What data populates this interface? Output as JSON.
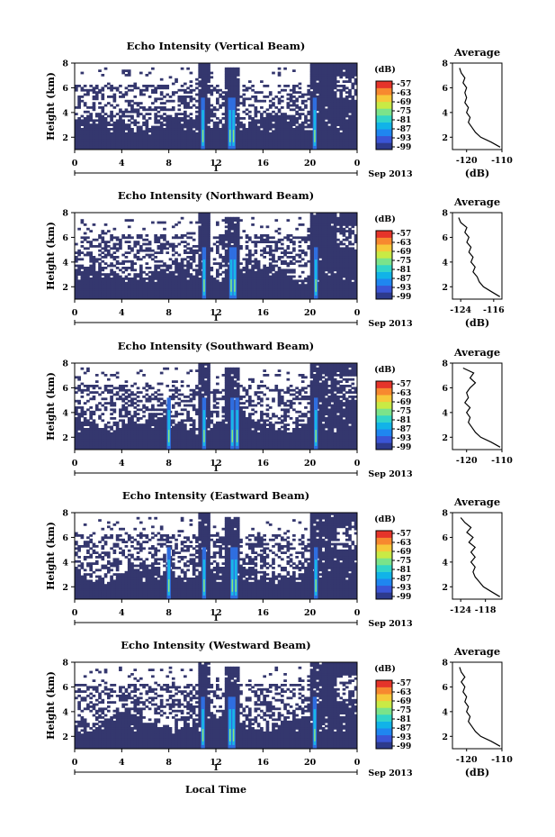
{
  "figure": {
    "xlabel": "Local Time",
    "date_label": "Sep 2013",
    "day_label": "1",
    "colorbar_unit": "(dB)",
    "colorbar_ticks": [
      "-57",
      "-63",
      "-69",
      "-75",
      "-81",
      "-87",
      "-93",
      "-99"
    ],
    "colorbar_colors": [
      "#2d3a8c",
      "#3a55d6",
      "#1f86f0",
      "#11b3e8",
      "#33d5c8",
      "#7be38a",
      "#c9ea45",
      "#f6c93a",
      "#f7892f",
      "#e5342a"
    ],
    "background_color": "#34376e"
  },
  "chart_data": [
    {
      "type": "heatmap",
      "title": "Echo Intensity (Vertical Beam)",
      "ylabel": "Height (km)",
      "x_ticks": [
        "0",
        "4",
        "8",
        "12",
        "16",
        "20",
        "0"
      ],
      "xlim": [
        0,
        24
      ],
      "y_ticks": [
        "2",
        "4",
        "6",
        "8"
      ],
      "ylim": [
        1,
        8
      ],
      "spikes_hours": [
        10.9,
        13.2,
        13.5,
        20.4
      ],
      "avg_profile": {
        "title": "Average",
        "xlabel": "(dB)",
        "x_ticks": [
          "-120",
          "-110"
        ],
        "xlim": [
          -124,
          -110
        ],
        "y_ticks": [
          "2",
          "4",
          "6",
          "8"
        ],
        "ylim": [
          1,
          8
        ],
        "height_km": [
          1.2,
          1.6,
          2.0,
          2.4,
          2.8,
          3.2,
          3.6,
          4.0,
          4.4,
          4.8,
          5.2,
          5.6,
          6.0,
          6.4,
          6.8,
          7.2,
          7.6
        ],
        "db": [
          -110.5,
          -113,
          -116,
          -117.5,
          -118.5,
          -119.5,
          -119,
          -120,
          -119.5,
          -120.5,
          -120,
          -120.5,
          -120,
          -121,
          -120.5,
          -121.5,
          -122
        ]
      }
    },
    {
      "type": "heatmap",
      "title": "Echo Intensity (Northward Beam)",
      "ylabel": "Height (km)",
      "x_ticks": [
        "0",
        "4",
        "8",
        "12",
        "16",
        "20",
        "0"
      ],
      "xlim": [
        0,
        24
      ],
      "y_ticks": [
        "2",
        "4",
        "6",
        "8"
      ],
      "ylim": [
        1,
        8
      ],
      "spikes_hours": [
        11.0,
        13.3,
        13.6,
        20.5
      ],
      "avg_profile": {
        "title": "Average",
        "xlabel": "(dB)",
        "x_ticks": [
          "-124",
          "-116"
        ],
        "xlim": [
          -126,
          -114
        ],
        "y_ticks": [
          "2",
          "4",
          "6",
          "8"
        ],
        "ylim": [
          1,
          8
        ],
        "height_km": [
          1.2,
          1.6,
          2.0,
          2.4,
          2.8,
          3.2,
          3.6,
          4.0,
          4.4,
          4.8,
          5.2,
          5.6,
          6.0,
          6.4,
          6.8,
          7.2,
          7.6
        ],
        "db": [
          -114.5,
          -116.5,
          -118.5,
          -119.5,
          -120,
          -121,
          -120.5,
          -121.5,
          -121,
          -122,
          -121.5,
          -122.5,
          -122,
          -123,
          -122.5,
          -124,
          -124.5
        ]
      }
    },
    {
      "type": "heatmap",
      "title": "Echo Intensity (Southward Beam)",
      "ylabel": "Height (km)",
      "x_ticks": [
        "0",
        "4",
        "8",
        "12",
        "16",
        "20",
        "0"
      ],
      "xlim": [
        0,
        24
      ],
      "y_ticks": [
        "2",
        "4",
        "6",
        "8"
      ],
      "ylim": [
        1,
        8
      ],
      "spikes_hours": [
        8.0,
        11.0,
        13.4,
        13.8,
        20.5
      ],
      "avg_profile": {
        "title": "Average",
        "xlabel": "",
        "x_ticks": [
          "-120",
          "-110"
        ],
        "xlim": [
          -124,
          -110
        ],
        "y_ticks": [
          "2",
          "4",
          "6",
          "8"
        ],
        "ylim": [
          1,
          8
        ],
        "height_km": [
          1.2,
          1.6,
          2.0,
          2.4,
          2.8,
          3.2,
          3.6,
          4.0,
          4.4,
          4.8,
          5.2,
          5.6,
          6.0,
          6.4,
          6.8,
          7.2,
          7.6
        ],
        "db": [
          -110.5,
          -113,
          -116,
          -117.5,
          -118.5,
          -119.5,
          -119,
          -120,
          -119,
          -120.5,
          -119.5,
          -120,
          -119,
          -117.5,
          -119,
          -118,
          -121
        ]
      }
    },
    {
      "type": "heatmap",
      "title": "Echo Intensity (Eastward Beam)",
      "ylabel": "Height (km)",
      "x_ticks": [
        "0",
        "4",
        "8",
        "12",
        "16",
        "20",
        "0"
      ],
      "xlim": [
        0,
        24
      ],
      "y_ticks": [
        "2",
        "4",
        "6",
        "8"
      ],
      "ylim": [
        1,
        8
      ],
      "spikes_hours": [
        8.0,
        11.0,
        13.4,
        13.7,
        20.5
      ],
      "avg_profile": {
        "title": "Average",
        "xlabel": "",
        "x_ticks": [
          "-124",
          "-118"
        ],
        "xlim": [
          -126,
          -114
        ],
        "y_ticks": [
          "2",
          "4",
          "6",
          "8"
        ],
        "ylim": [
          1,
          8
        ],
        "height_km": [
          1.2,
          1.6,
          2.0,
          2.4,
          2.8,
          3.2,
          3.6,
          4.0,
          4.4,
          4.8,
          5.2,
          5.6,
          6.0,
          6.4,
          6.8,
          7.2,
          7.6
        ],
        "db": [
          -114.5,
          -116.5,
          -118.5,
          -119.5,
          -120.5,
          -121,
          -120.5,
          -121.5,
          -120.5,
          -121.5,
          -120.5,
          -122,
          -121,
          -122.5,
          -121.5,
          -123,
          -124
        ]
      }
    },
    {
      "type": "heatmap",
      "title": "Echo Intensity (Westward Beam)",
      "ylabel": "Height (km)",
      "x_ticks": [
        "0",
        "4",
        "8",
        "12",
        "16",
        "20",
        "0"
      ],
      "xlim": [
        0,
        24
      ],
      "y_ticks": [
        "2",
        "4",
        "6",
        "8"
      ],
      "ylim": [
        1,
        8
      ],
      "spikes_hours": [
        10.9,
        13.2,
        13.5,
        20.4
      ],
      "avg_profile": {
        "title": "Average",
        "xlabel": "(dB)",
        "x_ticks": [
          "-120",
          "-110"
        ],
        "xlim": [
          -124,
          -110
        ],
        "y_ticks": [
          "2",
          "4",
          "6",
          "8"
        ],
        "ylim": [
          1,
          8
        ],
        "height_km": [
          1.2,
          1.6,
          2.0,
          2.4,
          2.8,
          3.2,
          3.6,
          4.0,
          4.4,
          4.8,
          5.2,
          5.6,
          6.0,
          6.4,
          6.8,
          7.2,
          7.6
        ],
        "db": [
          -110.5,
          -113,
          -116,
          -117.5,
          -118.5,
          -119.5,
          -119,
          -120,
          -119.5,
          -120.5,
          -120,
          -121,
          -120.5,
          -121.5,
          -120.5,
          -121.5,
          -122
        ]
      }
    }
  ]
}
